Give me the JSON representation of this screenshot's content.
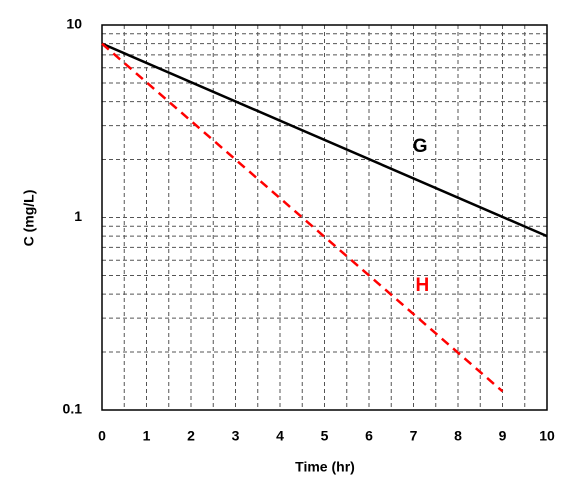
{
  "chart_data": {
    "type": "line",
    "x_label": "Time (hr)",
    "y_label": "C (mg/L)",
    "xlim": [
      0,
      10
    ],
    "xticks": [
      0,
      1,
      2,
      3,
      4,
      5,
      6,
      7,
      8,
      9,
      10
    ],
    "xminorticks": [
      0.5,
      1.5,
      2.5,
      3.5,
      4.5,
      5.5,
      6.5,
      7.5,
      8.5,
      9.5
    ],
    "ylim": [
      0.1,
      10
    ],
    "yticks": [
      0.1,
      1,
      10
    ],
    "yminorticks": [
      0.2,
      0.3,
      0.4,
      0.5,
      0.6,
      0.7,
      0.8,
      0.9,
      2,
      3,
      4,
      5,
      6,
      7,
      8,
      9
    ],
    "log_y": true,
    "grid": true,
    "series": [
      {
        "name": "G",
        "color": "#000000",
        "dash": false,
        "x": [
          0,
          10
        ],
        "values": [
          8,
          0.8
        ]
      },
      {
        "name": "H",
        "color": "#ff0000",
        "dash": true,
        "x": [
          0,
          9
        ],
        "values": [
          8,
          0.125
        ]
      }
    ],
    "annotations": [
      {
        "text": "G",
        "x": 7.15,
        "y": 2.33,
        "color": "#000000"
      },
      {
        "text": "H",
        "x": 7.2,
        "y": 0.44,
        "color": "#ff0000"
      }
    ]
  }
}
